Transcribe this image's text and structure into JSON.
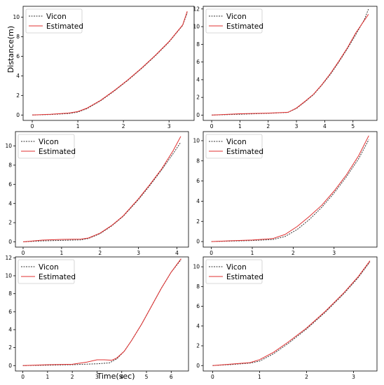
{
  "chart_data": [
    {
      "type": "line",
      "xlabel": "",
      "ylabel": "Distance(m)",
      "xlim": [
        -0.2,
        3.55
      ],
      "ylim": [
        -0.55,
        11.1
      ],
      "xticks": [
        0,
        1,
        2,
        3
      ],
      "yticks": [
        0,
        2,
        4,
        6,
        8,
        10
      ],
      "legend": "top-left",
      "series": [
        {
          "name": "Vicon",
          "color": "#333333",
          "dash": true,
          "x": [
            0,
            0.4,
            0.8,
            1.0,
            1.2,
            1.5,
            1.8,
            2.1,
            2.4,
            2.7,
            3.0,
            3.3,
            3.4
          ],
          "y": [
            0,
            0.05,
            0.15,
            0.3,
            0.65,
            1.45,
            2.45,
            3.55,
            4.75,
            6.05,
            7.45,
            9.15,
            10.45
          ]
        },
        {
          "name": "Estimated",
          "color": "#e03030",
          "dash": false,
          "x": [
            0,
            0.4,
            0.8,
            1.0,
            1.2,
            1.5,
            1.8,
            2.1,
            2.4,
            2.7,
            3.0,
            3.3,
            3.4
          ],
          "y": [
            0,
            0.08,
            0.2,
            0.35,
            0.7,
            1.5,
            2.5,
            3.6,
            4.8,
            6.1,
            7.5,
            9.2,
            10.6
          ]
        }
      ]
    },
    {
      "type": "line",
      "xlabel": "",
      "ylabel": "",
      "xlim": [
        -0.3,
        5.85
      ],
      "ylim": [
        -0.6,
        12.3
      ],
      "xticks": [
        0,
        1,
        2,
        3,
        4,
        5
      ],
      "yticks": [
        0,
        2,
        4,
        6,
        8,
        10,
        12
      ],
      "legend": "top-left",
      "series": [
        {
          "name": "Vicon",
          "color": "#333333",
          "dash": true,
          "x": [
            0,
            1,
            2,
            2.7,
            3.0,
            3.3,
            3.6,
            3.9,
            4.2,
            4.5,
            4.8,
            5.1,
            5.4,
            5.55
          ],
          "y": [
            0,
            0.1,
            0.2,
            0.3,
            0.75,
            1.5,
            2.3,
            3.4,
            4.6,
            6.0,
            7.5,
            9.1,
            10.8,
            12.0
          ]
        },
        {
          "name": "Estimated",
          "color": "#e03030",
          "dash": false,
          "x": [
            0,
            1,
            2,
            2.7,
            3.0,
            3.3,
            3.6,
            3.9,
            4.2,
            4.5,
            4.8,
            5.1,
            5.4,
            5.55
          ],
          "y": [
            0,
            0.15,
            0.22,
            0.32,
            0.8,
            1.55,
            2.35,
            3.45,
            4.7,
            6.1,
            7.6,
            9.3,
            10.7,
            11.4
          ]
        }
      ]
    },
    {
      "type": "line",
      "xlabel": "",
      "ylabel": "",
      "xlim": [
        -0.2,
        4.3
      ],
      "ylim": [
        -0.55,
        11.5
      ],
      "xticks": [
        0,
        1,
        2,
        3,
        4
      ],
      "yticks": [
        0,
        2,
        4,
        6,
        8,
        10
      ],
      "legend": "top-left",
      "series": [
        {
          "name": "Vicon",
          "color": "#333333",
          "dash": true,
          "x": [
            0,
            0.5,
            1.0,
            1.5,
            1.7,
            2.0,
            2.3,
            2.6,
            3.0,
            3.3,
            3.6,
            3.9,
            4.1
          ],
          "y": [
            0,
            0.1,
            0.15,
            0.2,
            0.35,
            0.85,
            1.65,
            2.65,
            4.4,
            5.9,
            7.5,
            9.2,
            10.4
          ]
        },
        {
          "name": "Estimated",
          "color": "#e03030",
          "dash": false,
          "x": [
            0,
            0.5,
            1.0,
            1.5,
            1.7,
            2.0,
            2.3,
            2.6,
            3.0,
            3.3,
            3.6,
            3.9,
            4.1
          ],
          "y": [
            0,
            0.18,
            0.25,
            0.28,
            0.4,
            0.9,
            1.7,
            2.7,
            4.5,
            6.0,
            7.6,
            9.5,
            11.0
          ]
        }
      ]
    },
    {
      "type": "line",
      "xlabel": "",
      "ylabel": "",
      "xlim": [
        -0.2,
        4.05
      ],
      "ylim": [
        -0.55,
        10.9
      ],
      "xticks": [
        0,
        1,
        2,
        3
      ],
      "yticks": [
        0,
        2,
        4,
        6,
        8,
        10
      ],
      "legend": "top-left",
      "series": [
        {
          "name": "Vicon",
          "color": "#333333",
          "dash": true,
          "x": [
            0,
            0.5,
            1.0,
            1.5,
            1.8,
            2.1,
            2.4,
            2.7,
            3.0,
            3.3,
            3.6,
            3.85
          ],
          "y": [
            0,
            0.05,
            0.1,
            0.2,
            0.5,
            1.2,
            2.2,
            3.4,
            4.8,
            6.4,
            8.2,
            10.1
          ]
        },
        {
          "name": "Estimated",
          "color": "#e03030",
          "dash": false,
          "x": [
            0,
            0.5,
            1.0,
            1.5,
            1.8,
            2.1,
            2.4,
            2.7,
            3.0,
            3.3,
            3.6,
            3.85
          ],
          "y": [
            0,
            0.08,
            0.15,
            0.3,
            0.7,
            1.5,
            2.5,
            3.6,
            5.0,
            6.6,
            8.5,
            10.5
          ]
        }
      ]
    },
    {
      "type": "line",
      "xlabel": "Time(sec)",
      "ylabel": "",
      "xlim": [
        -0.3,
        6.7
      ],
      "ylim": [
        -0.6,
        12.1
      ],
      "xticks": [
        0,
        1,
        2,
        3,
        4,
        5,
        6
      ],
      "yticks": [
        0,
        2,
        4,
        6,
        8,
        10,
        12
      ],
      "legend": "top-left",
      "series": [
        {
          "name": "Vicon",
          "color": "#333333",
          "dash": true,
          "x": [
            0,
            1,
            2,
            3,
            3.5,
            3.8,
            4.1,
            4.4,
            4.8,
            5.2,
            5.6,
            6.0,
            6.4
          ],
          "y": [
            0,
            0.05,
            0.1,
            0.2,
            0.3,
            0.75,
            1.6,
            2.8,
            4.6,
            6.6,
            8.6,
            10.4,
            11.8
          ]
        },
        {
          "name": "Estimated",
          "color": "#e03030",
          "dash": false,
          "x": [
            0,
            1,
            2,
            2.6,
            3.0,
            3.3,
            3.6,
            3.8,
            4.1,
            4.4,
            4.8,
            5.2,
            5.6,
            6.0,
            6.4
          ],
          "y": [
            0,
            0.1,
            0.15,
            0.4,
            0.65,
            0.65,
            0.6,
            0.85,
            1.6,
            2.8,
            4.6,
            6.6,
            8.6,
            10.4,
            11.9
          ]
        }
      ]
    },
    {
      "type": "line",
      "xlabel": "",
      "ylabel": "",
      "xlim": [
        -0.2,
        3.5
      ],
      "ylim": [
        -0.55,
        11.0
      ],
      "xticks": [
        0,
        1,
        2,
        3
      ],
      "yticks": [
        0,
        2,
        4,
        6,
        8,
        10
      ],
      "legend": "top-left",
      "series": [
        {
          "name": "Vicon",
          "color": "#333333",
          "dash": true,
          "x": [
            0,
            0.4,
            0.8,
            1.0,
            1.3,
            1.6,
            2.0,
            2.4,
            2.8,
            3.1,
            3.35
          ],
          "y": [
            0,
            0.1,
            0.25,
            0.45,
            1.2,
            2.2,
            3.7,
            5.4,
            7.3,
            8.9,
            10.5
          ]
        },
        {
          "name": "Estimated",
          "color": "#e03030",
          "dash": false,
          "x": [
            0,
            0.4,
            0.8,
            1.0,
            1.3,
            1.6,
            2.0,
            2.4,
            2.8,
            3.1,
            3.35
          ],
          "y": [
            0,
            0.15,
            0.3,
            0.6,
            1.35,
            2.35,
            3.8,
            5.5,
            7.4,
            9.0,
            10.6
          ]
        }
      ]
    }
  ]
}
